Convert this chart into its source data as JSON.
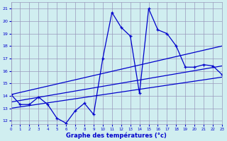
{
  "title": "Graphe des températures (°c)",
  "bg_color": "#d0eef0",
  "grid_color": "#9999bb",
  "line_color": "#0000cc",
  "x_ticks": [
    0,
    1,
    2,
    3,
    4,
    5,
    6,
    7,
    8,
    9,
    10,
    11,
    12,
    13,
    14,
    15,
    16,
    17,
    18,
    19,
    20,
    21,
    22,
    23
  ],
  "y_ticks": [
    12,
    13,
    14,
    15,
    16,
    17,
    18,
    19,
    20,
    21
  ],
  "xlim": [
    0,
    23
  ],
  "ylim": [
    11.7,
    21.5
  ],
  "series1_x": [
    0,
    1,
    2,
    3,
    4,
    5,
    6,
    7,
    8,
    9,
    10,
    11,
    12,
    13,
    14,
    15,
    16,
    17,
    18,
    19,
    20,
    21,
    22,
    23
  ],
  "series1_y": [
    14.1,
    13.3,
    13.3,
    13.9,
    13.3,
    12.2,
    11.8,
    12.8,
    13.4,
    12.5,
    17.0,
    20.7,
    19.5,
    18.8,
    14.2,
    21.0,
    19.3,
    19.0,
    18.0,
    16.3,
    16.3,
    16.5,
    16.4,
    15.7
  ],
  "series2_x": [
    0,
    23
  ],
  "series2_y": [
    14.1,
    18.0
  ],
  "series3_x": [
    0,
    23
  ],
  "series3_y": [
    13.5,
    16.4
  ],
  "series4_x": [
    0,
    23
  ],
  "series4_y": [
    13.0,
    15.5
  ]
}
